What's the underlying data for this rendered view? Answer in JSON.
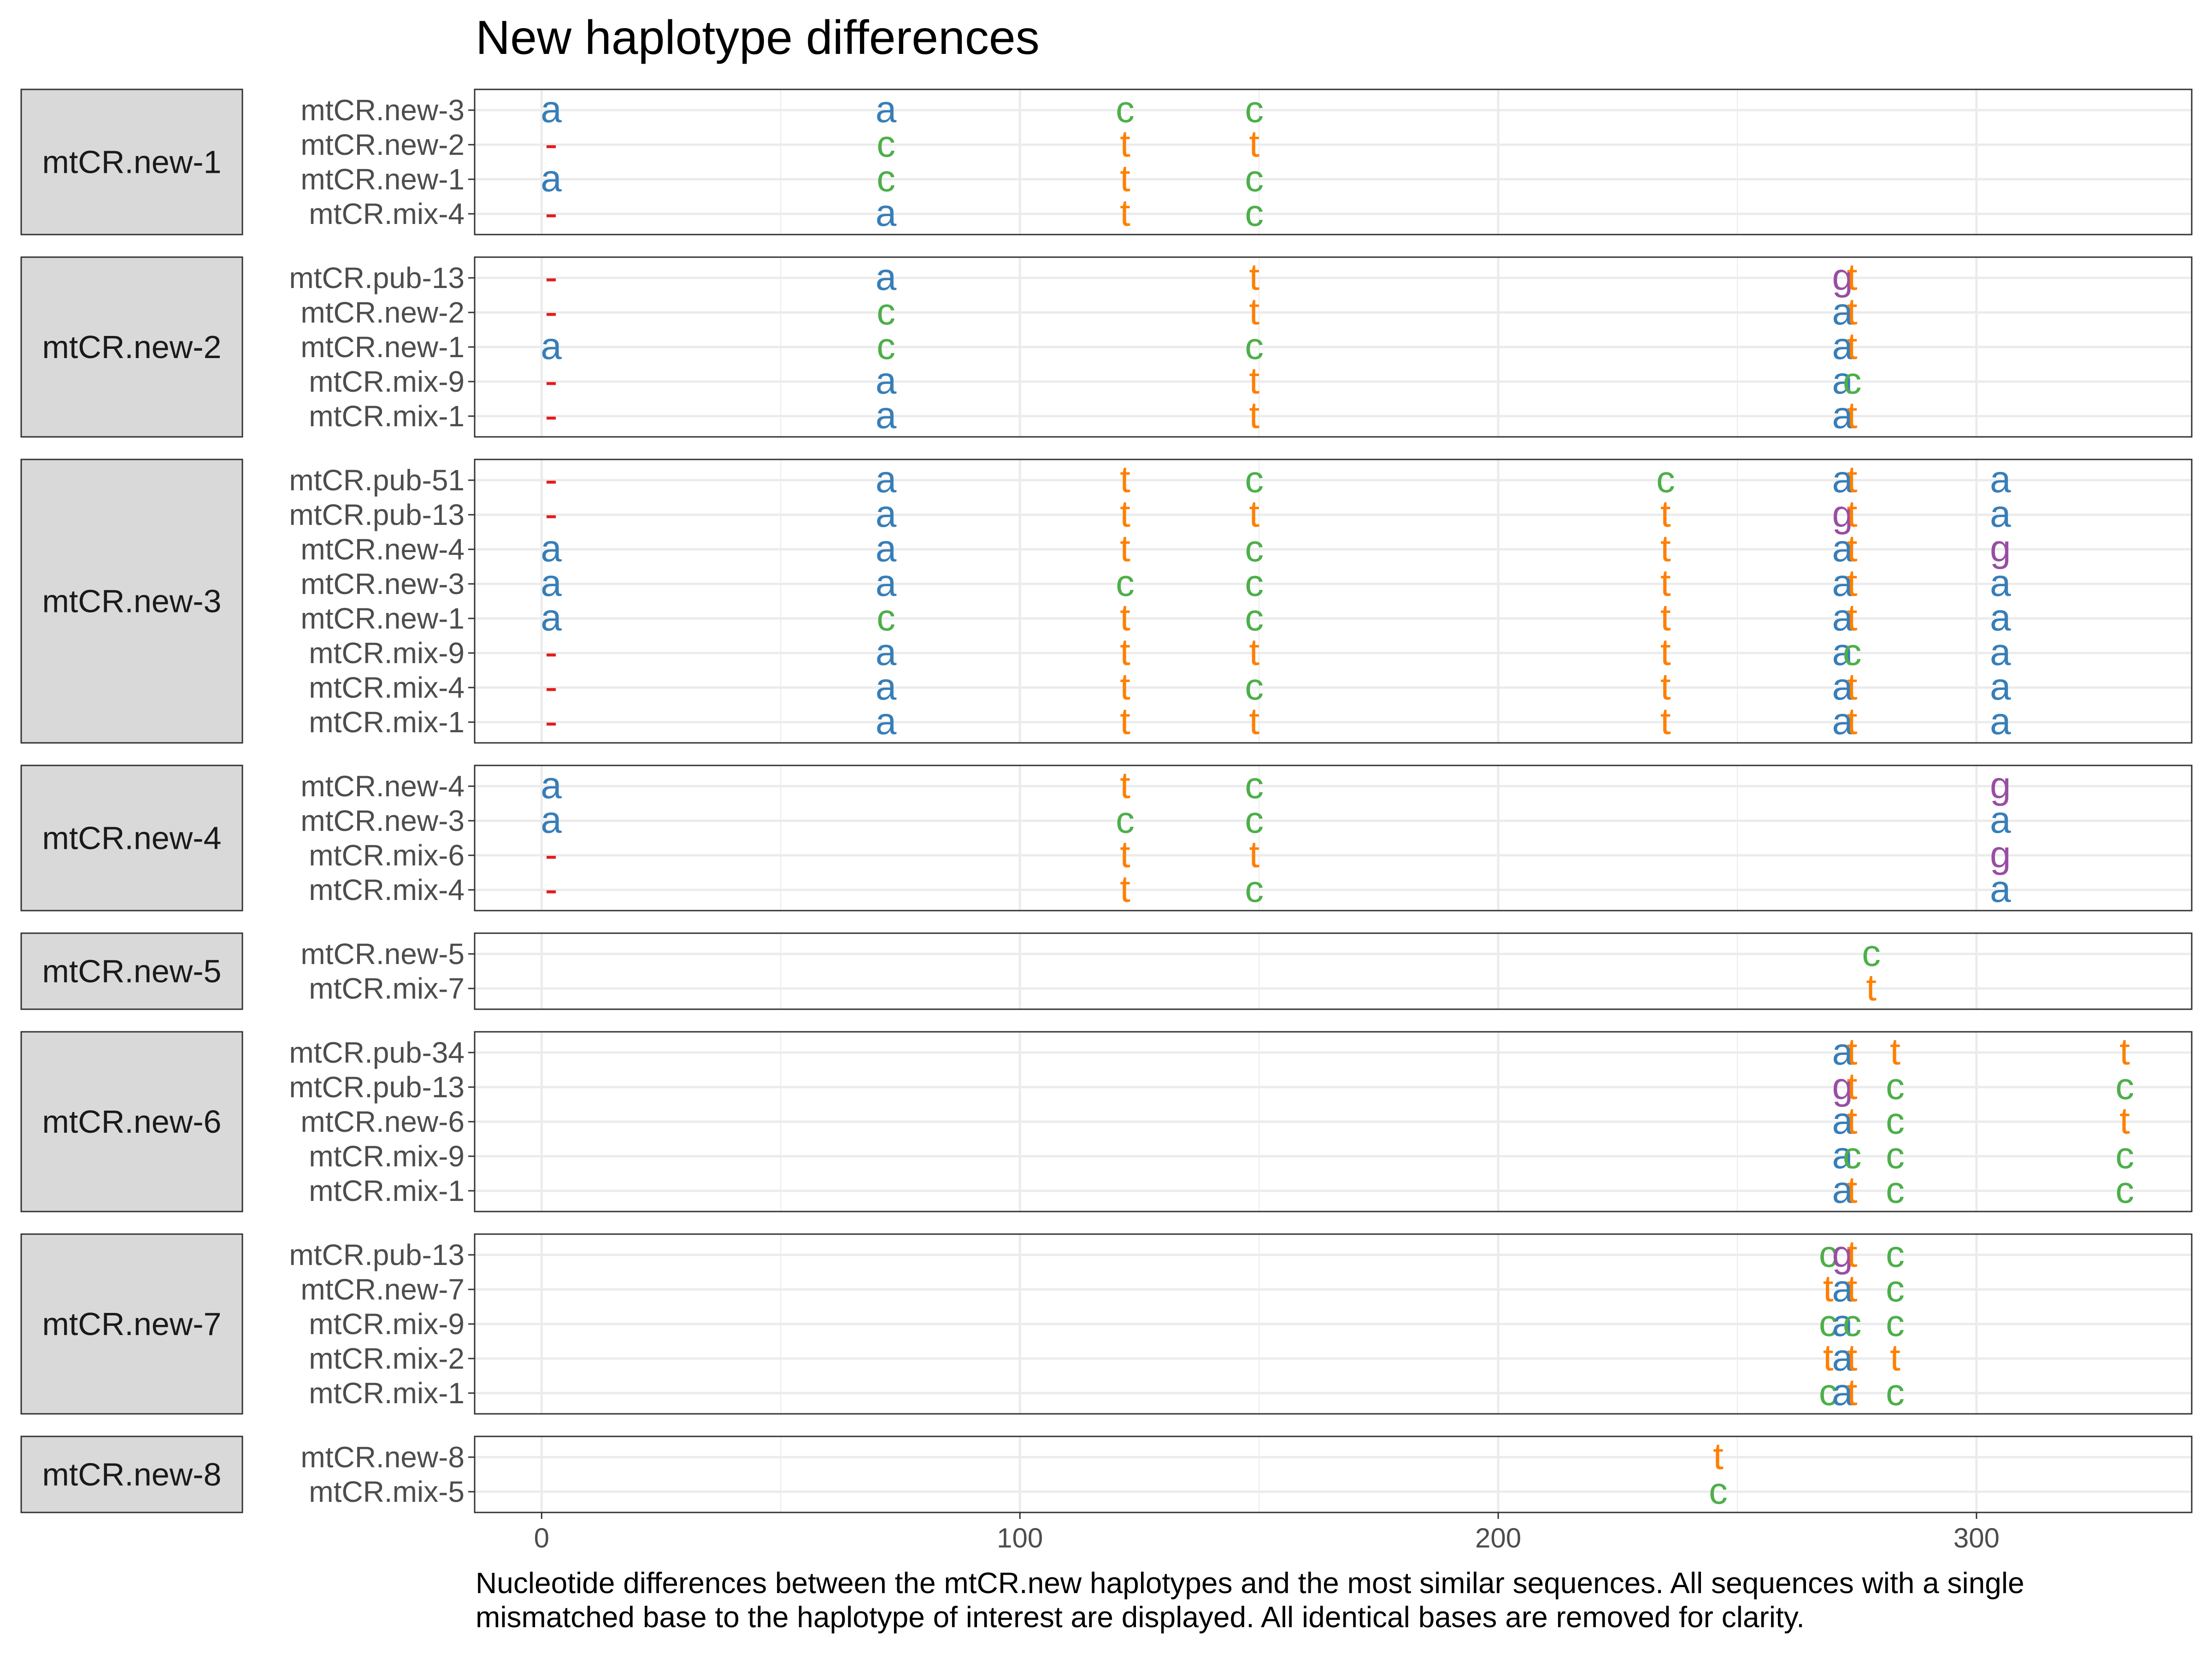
{
  "chart_data": {
    "type": "scatter",
    "title": "New haplotype differences",
    "caption": "Nucleotide differences between the mtCR.new haplotypes and the most similar sequences. All sequences with a single mismatched base to the haplotype of interest are displayed. All identical bases are removed for clarity.",
    "xlabel": "",
    "ylabel": "",
    "xlim": [
      -14,
      345
    ],
    "x_ticks": [
      0,
      100,
      200,
      300
    ],
    "grid": true,
    "legend": "none",
    "colors": {
      "a": "#377eb8",
      "c": "#4daf4a",
      "t": "#ff7f00",
      "g": "#984ea3",
      "-": "#e41a1c"
    },
    "panels": [
      {
        "name": "mtCR.new-1",
        "rows": [
          "mtCR.new-3",
          "mtCR.new-2",
          "mtCR.new-1",
          "mtCR.mix-4"
        ],
        "points": [
          [
            2,
            0,
            "a"
          ],
          [
            72,
            0,
            "a"
          ],
          [
            122,
            0,
            "c"
          ],
          [
            149,
            0,
            "c"
          ],
          [
            2,
            1,
            "-"
          ],
          [
            72,
            1,
            "c"
          ],
          [
            122,
            1,
            "t"
          ],
          [
            149,
            1,
            "t"
          ],
          [
            2,
            2,
            "a"
          ],
          [
            72,
            2,
            "c"
          ],
          [
            122,
            2,
            "t"
          ],
          [
            149,
            2,
            "c"
          ],
          [
            2,
            3,
            "-"
          ],
          [
            72,
            3,
            "a"
          ],
          [
            122,
            3,
            "t"
          ],
          [
            149,
            3,
            "c"
          ]
        ]
      },
      {
        "name": "mtCR.new-2",
        "rows": [
          "mtCR.pub-13",
          "mtCR.new-2",
          "mtCR.new-1",
          "mtCR.mix-9",
          "mtCR.mix-1"
        ],
        "points": [
          [
            2,
            0,
            "-"
          ],
          [
            72,
            0,
            "a"
          ],
          [
            149,
            0,
            "t"
          ],
          [
            272,
            0,
            "g"
          ],
          [
            274,
            0,
            "t"
          ],
          [
            2,
            1,
            "-"
          ],
          [
            72,
            1,
            "c"
          ],
          [
            149,
            1,
            "t"
          ],
          [
            272,
            1,
            "a"
          ],
          [
            274,
            1,
            "t"
          ],
          [
            2,
            2,
            "a"
          ],
          [
            72,
            2,
            "c"
          ],
          [
            149,
            2,
            "c"
          ],
          [
            272,
            2,
            "a"
          ],
          [
            274,
            2,
            "t"
          ],
          [
            2,
            3,
            "-"
          ],
          [
            72,
            3,
            "a"
          ],
          [
            149,
            3,
            "t"
          ],
          [
            272,
            3,
            "a"
          ],
          [
            274,
            3,
            "c"
          ],
          [
            2,
            4,
            "-"
          ],
          [
            72,
            4,
            "a"
          ],
          [
            149,
            4,
            "t"
          ],
          [
            272,
            4,
            "a"
          ],
          [
            274,
            4,
            "t"
          ]
        ]
      },
      {
        "name": "mtCR.new-3",
        "rows": [
          "mtCR.pub-51",
          "mtCR.pub-13",
          "mtCR.new-4",
          "mtCR.new-3",
          "mtCR.new-1",
          "mtCR.mix-9",
          "mtCR.mix-4",
          "mtCR.mix-1"
        ],
        "points": [
          [
            2,
            0,
            "-"
          ],
          [
            72,
            0,
            "a"
          ],
          [
            122,
            0,
            "t"
          ],
          [
            149,
            0,
            "c"
          ],
          [
            235,
            0,
            "c"
          ],
          [
            272,
            0,
            "a"
          ],
          [
            274,
            0,
            "t"
          ],
          [
            305,
            0,
            "a"
          ],
          [
            2,
            1,
            "-"
          ],
          [
            72,
            1,
            "a"
          ],
          [
            122,
            1,
            "t"
          ],
          [
            149,
            1,
            "t"
          ],
          [
            235,
            1,
            "t"
          ],
          [
            272,
            1,
            "g"
          ],
          [
            274,
            1,
            "t"
          ],
          [
            305,
            1,
            "a"
          ],
          [
            2,
            2,
            "a"
          ],
          [
            72,
            2,
            "a"
          ],
          [
            122,
            2,
            "t"
          ],
          [
            149,
            2,
            "c"
          ],
          [
            235,
            2,
            "t"
          ],
          [
            272,
            2,
            "a"
          ],
          [
            274,
            2,
            "t"
          ],
          [
            305,
            2,
            "g"
          ],
          [
            2,
            3,
            "a"
          ],
          [
            72,
            3,
            "a"
          ],
          [
            122,
            3,
            "c"
          ],
          [
            149,
            3,
            "c"
          ],
          [
            235,
            3,
            "t"
          ],
          [
            272,
            3,
            "a"
          ],
          [
            274,
            3,
            "t"
          ],
          [
            305,
            3,
            "a"
          ],
          [
            2,
            4,
            "a"
          ],
          [
            72,
            4,
            "c"
          ],
          [
            122,
            4,
            "t"
          ],
          [
            149,
            4,
            "c"
          ],
          [
            235,
            4,
            "t"
          ],
          [
            272,
            4,
            "a"
          ],
          [
            274,
            4,
            "t"
          ],
          [
            305,
            4,
            "a"
          ],
          [
            2,
            5,
            "-"
          ],
          [
            72,
            5,
            "a"
          ],
          [
            122,
            5,
            "t"
          ],
          [
            149,
            5,
            "t"
          ],
          [
            235,
            5,
            "t"
          ],
          [
            272,
            5,
            "a"
          ],
          [
            274,
            5,
            "c"
          ],
          [
            305,
            5,
            "a"
          ],
          [
            2,
            6,
            "-"
          ],
          [
            72,
            6,
            "a"
          ],
          [
            122,
            6,
            "t"
          ],
          [
            149,
            6,
            "c"
          ],
          [
            235,
            6,
            "t"
          ],
          [
            272,
            6,
            "a"
          ],
          [
            274,
            6,
            "t"
          ],
          [
            305,
            6,
            "a"
          ],
          [
            2,
            7,
            "-"
          ],
          [
            72,
            7,
            "a"
          ],
          [
            122,
            7,
            "t"
          ],
          [
            149,
            7,
            "t"
          ],
          [
            235,
            7,
            "t"
          ],
          [
            272,
            7,
            "a"
          ],
          [
            274,
            7,
            "t"
          ],
          [
            305,
            7,
            "a"
          ]
        ]
      },
      {
        "name": "mtCR.new-4",
        "rows": [
          "mtCR.new-4",
          "mtCR.new-3",
          "mtCR.mix-6",
          "mtCR.mix-4"
        ],
        "points": [
          [
            2,
            0,
            "a"
          ],
          [
            122,
            0,
            "t"
          ],
          [
            149,
            0,
            "c"
          ],
          [
            305,
            0,
            "g"
          ],
          [
            2,
            1,
            "a"
          ],
          [
            122,
            1,
            "c"
          ],
          [
            149,
            1,
            "c"
          ],
          [
            305,
            1,
            "a"
          ],
          [
            2,
            2,
            "-"
          ],
          [
            122,
            2,
            "t"
          ],
          [
            149,
            2,
            "t"
          ],
          [
            305,
            2,
            "g"
          ],
          [
            2,
            3,
            "-"
          ],
          [
            122,
            3,
            "t"
          ],
          [
            149,
            3,
            "c"
          ],
          [
            305,
            3,
            "a"
          ]
        ]
      },
      {
        "name": "mtCR.new-5",
        "rows": [
          "mtCR.new-5",
          "mtCR.mix-7"
        ],
        "points": [
          [
            278,
            0,
            "c"
          ],
          [
            278,
            1,
            "t"
          ]
        ]
      },
      {
        "name": "mtCR.new-6",
        "rows": [
          "mtCR.pub-34",
          "mtCR.pub-13",
          "mtCR.new-6",
          "mtCR.mix-9",
          "mtCR.mix-1"
        ],
        "points": [
          [
            272,
            0,
            "a"
          ],
          [
            274,
            0,
            "t"
          ],
          [
            283,
            0,
            "t"
          ],
          [
            331,
            0,
            "t"
          ],
          [
            272,
            1,
            "g"
          ],
          [
            274,
            1,
            "t"
          ],
          [
            283,
            1,
            "c"
          ],
          [
            331,
            1,
            "c"
          ],
          [
            272,
            2,
            "a"
          ],
          [
            274,
            2,
            "t"
          ],
          [
            283,
            2,
            "c"
          ],
          [
            331,
            2,
            "t"
          ],
          [
            272,
            3,
            "a"
          ],
          [
            274,
            3,
            "c"
          ],
          [
            283,
            3,
            "c"
          ],
          [
            331,
            3,
            "c"
          ],
          [
            272,
            4,
            "a"
          ],
          [
            274,
            4,
            "t"
          ],
          [
            283,
            4,
            "c"
          ],
          [
            331,
            4,
            "c"
          ]
        ]
      },
      {
        "name": "mtCR.new-7",
        "rows": [
          "mtCR.pub-13",
          "mtCR.new-7",
          "mtCR.mix-9",
          "mtCR.mix-2",
          "mtCR.mix-1"
        ],
        "points": [
          [
            269,
            0,
            "c"
          ],
          [
            272,
            0,
            "g"
          ],
          [
            274,
            0,
            "t"
          ],
          [
            283,
            0,
            "c"
          ],
          [
            269,
            1,
            "t"
          ],
          [
            272,
            1,
            "a"
          ],
          [
            274,
            1,
            "t"
          ],
          [
            283,
            1,
            "c"
          ],
          [
            269,
            2,
            "c"
          ],
          [
            272,
            2,
            "a"
          ],
          [
            274,
            2,
            "c"
          ],
          [
            283,
            2,
            "c"
          ],
          [
            269,
            3,
            "t"
          ],
          [
            272,
            3,
            "a"
          ],
          [
            274,
            3,
            "t"
          ],
          [
            283,
            3,
            "t"
          ],
          [
            269,
            4,
            "c"
          ],
          [
            272,
            4,
            "a"
          ],
          [
            274,
            4,
            "t"
          ],
          [
            283,
            4,
            "c"
          ]
        ]
      },
      {
        "name": "mtCR.new-8",
        "rows": [
          "mtCR.new-8",
          "mtCR.mix-5"
        ],
        "points": [
          [
            246,
            0,
            "t"
          ],
          [
            246,
            1,
            "c"
          ]
        ]
      }
    ]
  }
}
